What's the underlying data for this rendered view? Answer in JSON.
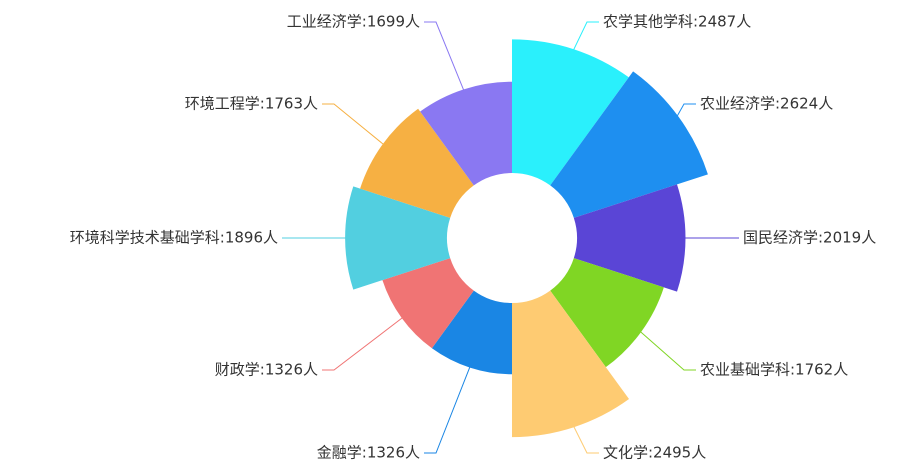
{
  "chart_data": {
    "type": "rose",
    "value_labels": [
      "农学其他学科:2487人",
      "农业经济学:2624人",
      "国民经济学:2019人",
      "农业基础学科:1762人",
      "文化学:2495人",
      "金融学:1326人",
      "财政学:1326人",
      "环境科学技术基础学科:1896人",
      "环境工程学:1763人",
      "工业经济学:1699人"
    ],
    "values": [
      2487,
      2624,
      2019,
      1762,
      2495,
      1326,
      1326,
      1896,
      1763,
      1699
    ],
    "colors": [
      "#2af0fc",
      "#1e8ff0",
      "#5a45d6",
      "#80d624",
      "#fecb72",
      "#1a86e4",
      "#f07474",
      "#52cfe0",
      "#f6b043",
      "#8a78f2"
    ]
  }
}
